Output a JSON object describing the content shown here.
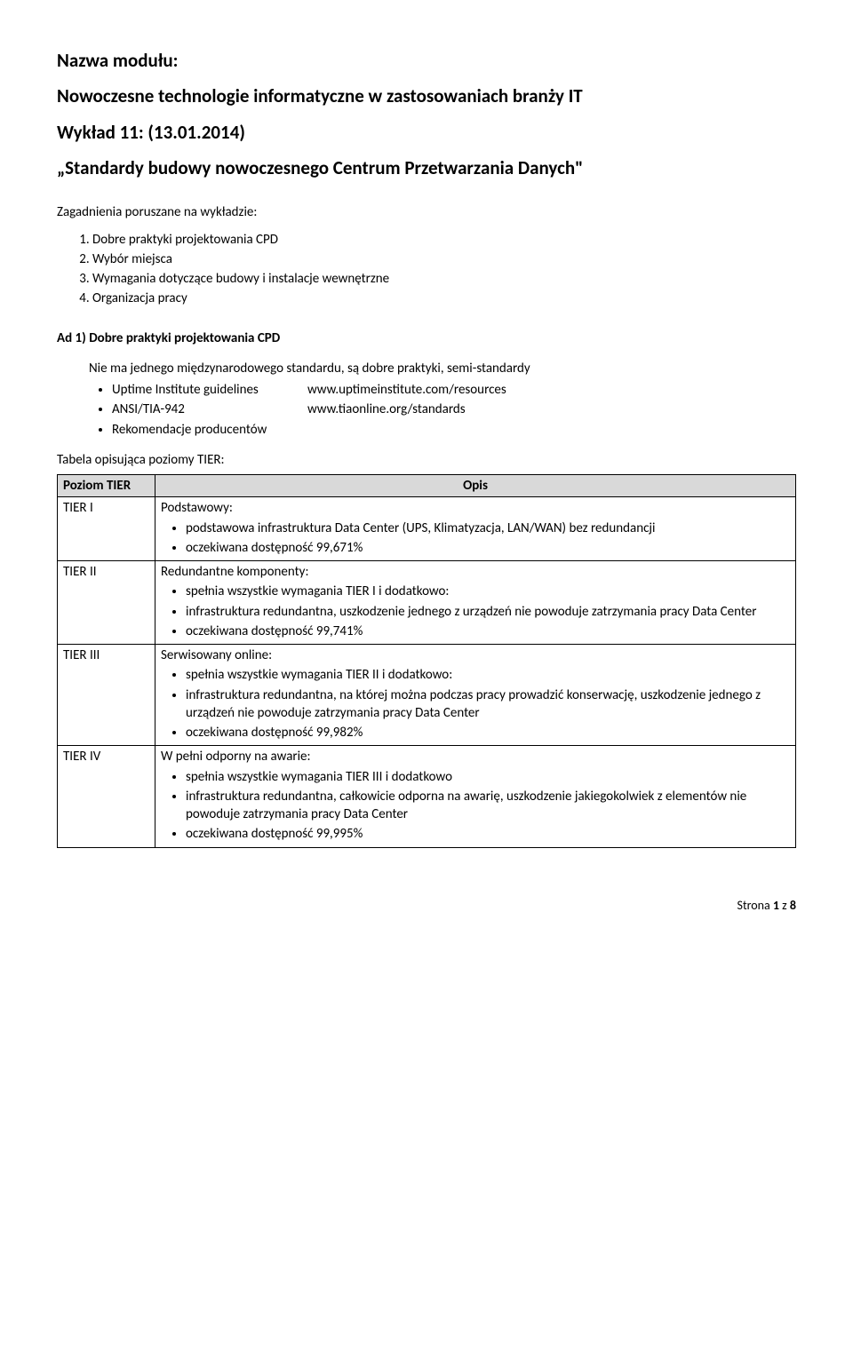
{
  "header": {
    "module_label": "Nazwa modułu:",
    "module_title": "Nowoczesne technologie informatyczne w zastosowaniach branży IT",
    "lecture": "Wykład 11: (13.01.2014)",
    "doc_title": "„Standardy budowy nowoczesnego Centrum Przetwarzania Danych\""
  },
  "topics": {
    "label": "Zagadnienia poruszane na wykładzie:",
    "items": [
      "Dobre praktyki projektowania CPD",
      "Wybór miejsca",
      "Wymagania dotyczące budowy i instalacje wewnętrzne",
      "Organizacja pracy"
    ]
  },
  "section1": {
    "heading": "Ad 1) Dobre praktyki projektowania CPD",
    "intro": "Nie ma jednego międzynarodowego standardu, są dobre praktyki, semi-standardy",
    "guidelines": [
      {
        "label": "Uptime Institute guidelines",
        "url": "www.uptimeinstitute.com/resources"
      },
      {
        "label": "ANSI/TIA-942",
        "url": "www.tiaonline.org/standards"
      },
      {
        "label": "Rekomendacje producentów",
        "url": ""
      }
    ]
  },
  "tier_table": {
    "caption": "Tabela opisująca poziomy TIER:",
    "col_tier": "Poziom TIER",
    "col_desc": "Opis",
    "rows": [
      {
        "tier": "TIER I",
        "label": "Podstawowy:",
        "bullets": [
          "podstawowa infrastruktura Data Center (UPS, Klimatyzacja, LAN/WAN) bez redundancji",
          "oczekiwana dostępność 99,671%"
        ]
      },
      {
        "tier": "TIER II",
        "label": "Redundantne komponenty:",
        "bullets": [
          "spełnia wszystkie wymagania TIER I i dodatkowo:",
          "infrastruktura redundantna, uszkodzenie jednego z urządzeń nie powoduje zatrzymania pracy Data Center",
          "oczekiwana dostępność 99,741%"
        ]
      },
      {
        "tier": "TIER III",
        "label": "Serwisowany online:",
        "bullets": [
          "spełnia wszystkie wymagania TIER II i dodatkowo:",
          "infrastruktura redundantna, na której można podczas pracy prowadzić konserwację, uszkodzenie jednego z urządzeń nie powoduje zatrzymania pracy Data Center",
          "oczekiwana dostępność 99,982%"
        ]
      },
      {
        "tier": "TIER IV",
        "label": "W pełni odporny na awarie:",
        "bullets": [
          "spełnia wszystkie wymagania TIER III i dodatkowo",
          "infrastruktura redundantna, całkowicie odporna na awarię, uszkodzenie jakiegokolwiek z elementów nie powoduje zatrzymania pracy Data Center",
          "oczekiwana dostępność 99,995%"
        ]
      }
    ]
  },
  "footer": {
    "page_label": "Strona 1 z 8"
  }
}
